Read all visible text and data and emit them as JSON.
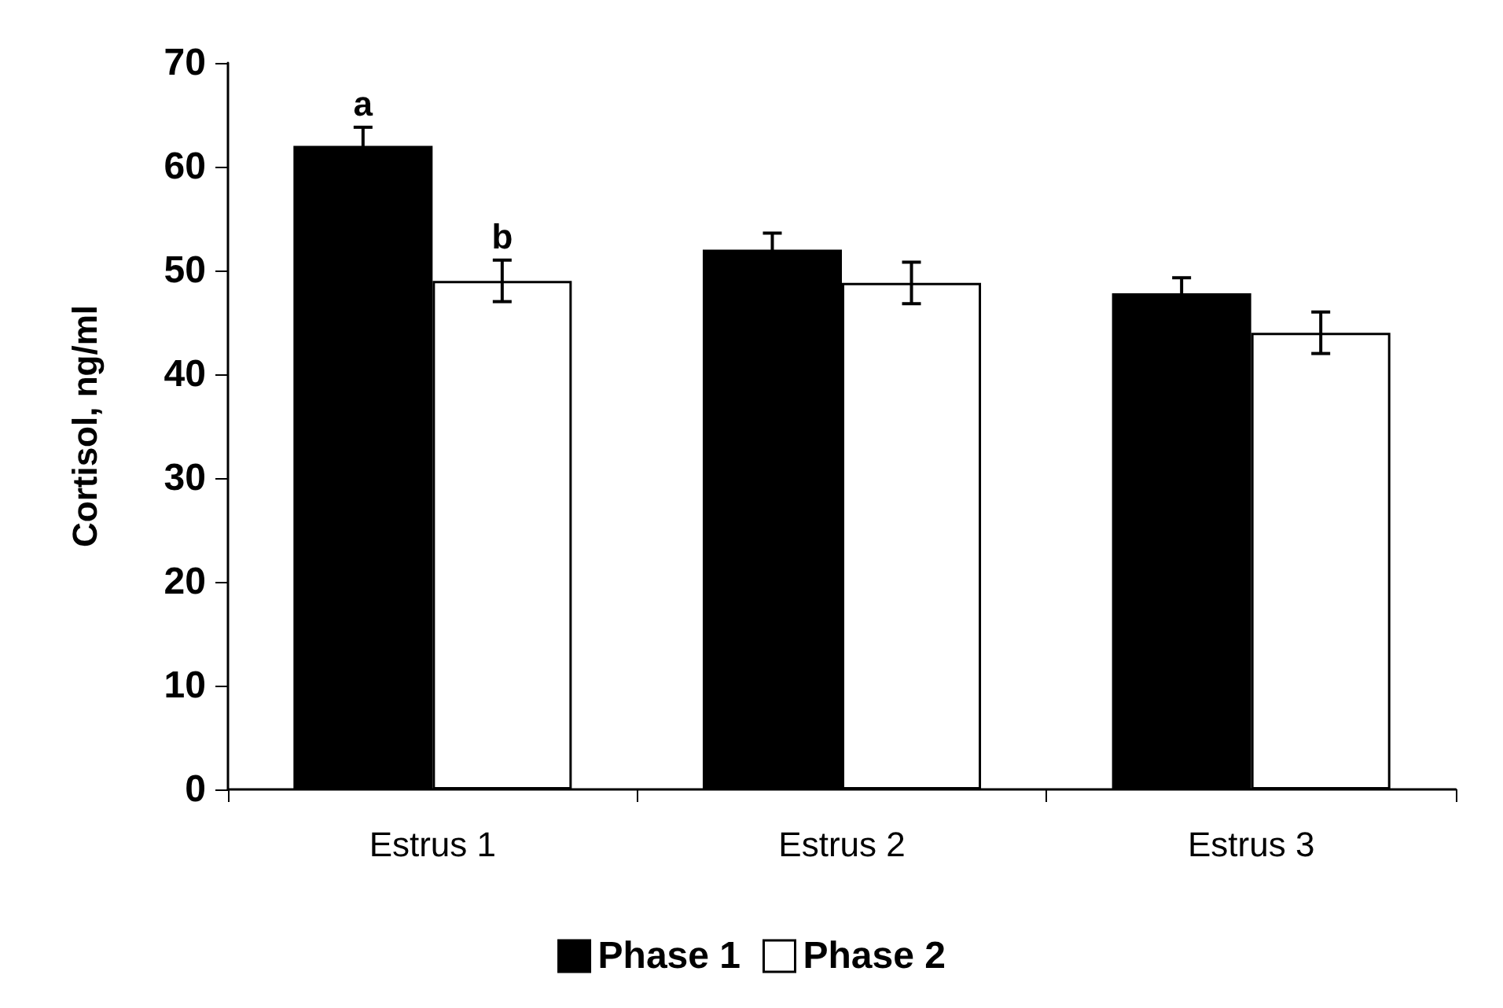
{
  "chart_data": {
    "type": "bar",
    "ylabel": "Cortisol, ng/ml",
    "categories": [
      "Estrus 1",
      "Estrus 2",
      "Estrus 3"
    ],
    "series": [
      {
        "name": "Phase 1",
        "color": "#000000",
        "values": [
          62,
          52,
          47.8
        ],
        "errors": [
          1.8,
          1.6,
          1.5
        ]
      },
      {
        "name": "Phase 2",
        "color": "#ffffff",
        "values": [
          49,
          48.8,
          44
        ],
        "errors": [
          2,
          2,
          2
        ]
      }
    ],
    "ylim": [
      0,
      70
    ],
    "yticks": [
      0,
      10,
      20,
      30,
      40,
      50,
      60,
      70
    ],
    "grid": false,
    "legend": "bottom",
    "annotations": [
      {
        "text": "a",
        "x": "Estrus 1",
        "y": 62
      },
      {
        "text": "b",
        "x": "Estrus 1",
        "y": 49
      }
    ]
  }
}
